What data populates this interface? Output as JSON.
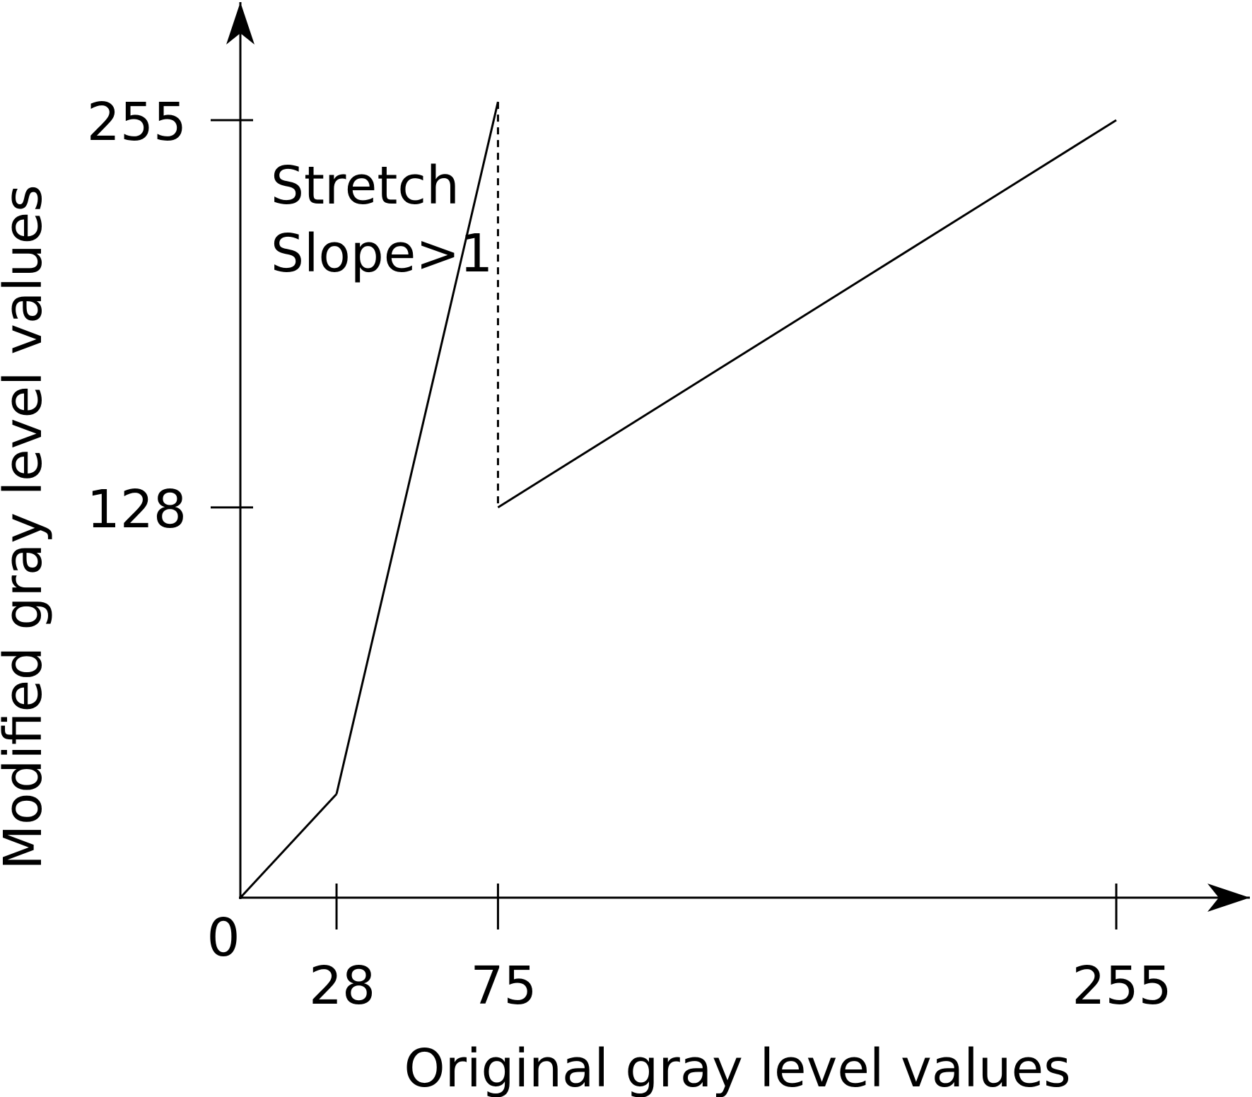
{
  "chart_data": {
    "type": "line",
    "title": "",
    "xlabel": "Original gray level values",
    "ylabel": "Modified gray level values",
    "xlim": [
      0,
      255
    ],
    "ylim": [
      0,
      255
    ],
    "x_ticks": [
      28,
      75,
      255
    ],
    "y_ticks": [
      128,
      255
    ],
    "origin_label": "0",
    "grid": false,
    "series": [
      {
        "points": [
          [
            0,
            0
          ],
          [
            28,
            34
          ],
          [
            75,
            261
          ],
          [
            75,
            128
          ],
          [
            255,
            255
          ]
        ],
        "segments": [
          "solid",
          "solid",
          "dashed",
          "solid"
        ]
      }
    ],
    "annotations": [
      {
        "lines": [
          "Stretch",
          "Slope>1"
        ]
      }
    ]
  }
}
